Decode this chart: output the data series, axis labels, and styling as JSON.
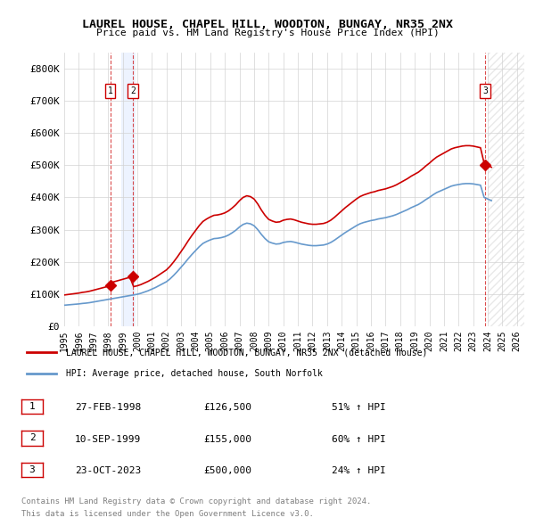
{
  "title": "LAUREL HOUSE, CHAPEL HILL, WOODTON, BUNGAY, NR35 2NX",
  "subtitle": "Price paid vs. HM Land Registry's House Price Index (HPI)",
  "ylim": [
    0,
    850000
  ],
  "yticks": [
    0,
    100000,
    200000,
    300000,
    400000,
    500000,
    600000,
    700000,
    800000
  ],
  "ytick_labels": [
    "£0",
    "£100K",
    "£200K",
    "£300K",
    "£400K",
    "£500K",
    "£600K",
    "£700K",
    "£800K"
  ],
  "xlim_start": 1995.5,
  "xlim_end": 2026.5,
  "xticks": [
    1995,
    1996,
    1997,
    1998,
    1999,
    2000,
    2001,
    2002,
    2003,
    2004,
    2005,
    2006,
    2007,
    2008,
    2009,
    2010,
    2011,
    2012,
    2013,
    2014,
    2015,
    2016,
    2017,
    2018,
    2019,
    2020,
    2021,
    2022,
    2023,
    2024,
    2025,
    2026
  ],
  "sale_dates": [
    1998.15,
    1999.69,
    2023.81
  ],
  "sale_prices": [
    126500,
    155000,
    500000
  ],
  "sale_labels": [
    "1",
    "2",
    "3"
  ],
  "red_line_color": "#cc0000",
  "blue_line_color": "#6699cc",
  "sale_marker_color": "#cc0000",
  "legend_line1": "LAUREL HOUSE, CHAPEL HILL, WOODTON, BUNGAY, NR35 2NX (detached house)",
  "legend_line2": "HPI: Average price, detached house, South Norfolk",
  "table_rows": [
    {
      "num": "1",
      "date": "27-FEB-1998",
      "price": "£126,500",
      "hpi": "51% ↑ HPI"
    },
    {
      "num": "2",
      "date": "10-SEP-1999",
      "price": "£155,000",
      "hpi": "60% ↑ HPI"
    },
    {
      "num": "3",
      "date": "23-OCT-2023",
      "price": "£500,000",
      "hpi": "24% ↑ HPI"
    }
  ],
  "footnote1": "Contains HM Land Registry data © Crown copyright and database right 2024.",
  "footnote2": "This data is licensed under the Open Government Licence v3.0.",
  "hatch_region_start": 2024.0,
  "hatch_region_end": 2026.5,
  "shade_region_start": 1998.9,
  "shade_region_end": 1999.9
}
